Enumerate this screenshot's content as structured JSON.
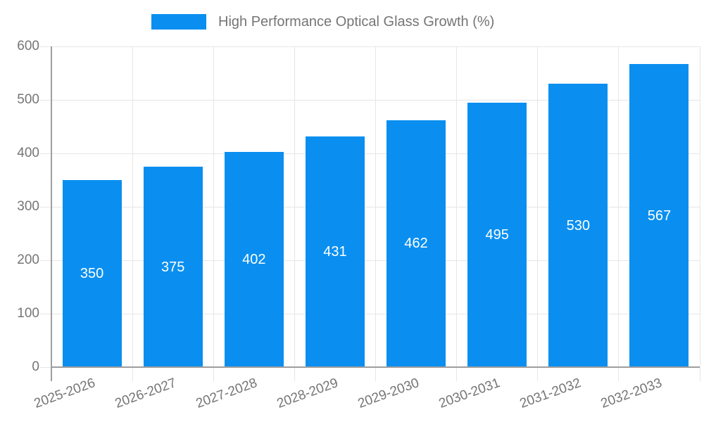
{
  "legend": {
    "label": "High Performance Optical Glass Growth (%)"
  },
  "chart_data": {
    "type": "bar",
    "title": "High Performance Optical Glass Growth (%)",
    "categories": [
      "2025-2026",
      "2026-2027",
      "2027-2028",
      "2028-2029",
      "2029-2030",
      "2030-2031",
      "2031-2032",
      "2032-2033"
    ],
    "values": [
      350,
      375,
      402,
      431,
      462,
      495,
      530,
      567
    ],
    "xlabel": "",
    "ylabel": "",
    "ylim": [
      0,
      600
    ],
    "yticks": [
      0,
      100,
      200,
      300,
      400,
      500,
      600
    ],
    "grid": true,
    "legend_position": "top",
    "bar_labels_inside": true,
    "colors": {
      "series": "#0a8ff0",
      "bar_label": "#ffffff",
      "axis_line": "#9e9e9e",
      "gridline": "#e6e6e6",
      "tick_label": "#757575",
      "legend_text": "#757575",
      "background": "#ffffff"
    }
  }
}
